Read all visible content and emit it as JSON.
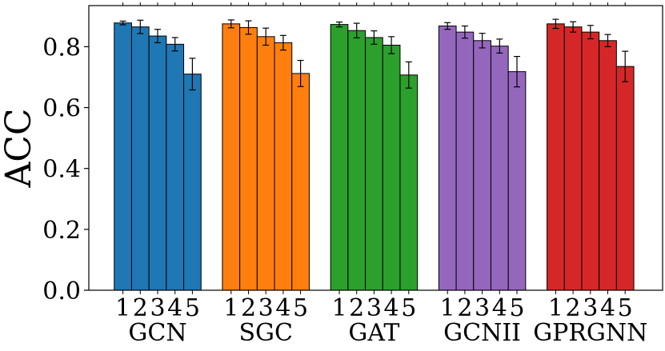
{
  "chart_data": {
    "type": "bar",
    "title": "",
    "xlabel": "",
    "ylabel": "ACC",
    "ylim": [
      0,
      0.935
    ],
    "yticks": [
      0.0,
      0.2,
      0.4,
      0.6,
      0.8
    ],
    "ytick_labels": [
      "0.0",
      "0.2",
      "0.4",
      "0.6",
      "0.8"
    ],
    "bar_labels": [
      "1",
      "2",
      "3",
      "4",
      "5"
    ],
    "groups": [
      {
        "name": "GCN",
        "color": "#1f77b4",
        "values": [
          0.878,
          0.865,
          0.835,
          0.808,
          0.71
        ],
        "errors": [
          0.006,
          0.022,
          0.022,
          0.022,
          0.052
        ]
      },
      {
        "name": "SGC",
        "color": "#ff7f0e",
        "values": [
          0.875,
          0.863,
          0.833,
          0.813,
          0.712
        ],
        "errors": [
          0.013,
          0.022,
          0.028,
          0.024,
          0.043
        ]
      },
      {
        "name": "GAT",
        "color": "#2ca02c",
        "values": [
          0.873,
          0.853,
          0.83,
          0.805,
          0.707
        ],
        "errors": [
          0.008,
          0.024,
          0.022,
          0.028,
          0.043
        ]
      },
      {
        "name": "GCNII",
        "color": "#9467bd",
        "values": [
          0.868,
          0.848,
          0.82,
          0.802,
          0.718
        ],
        "errors": [
          0.011,
          0.02,
          0.024,
          0.023,
          0.05
        ]
      },
      {
        "name": "GPRGNN",
        "color": "#d62728",
        "values": [
          0.875,
          0.865,
          0.848,
          0.82,
          0.735
        ],
        "errors": [
          0.015,
          0.017,
          0.022,
          0.02,
          0.05
        ]
      }
    ],
    "grid": false,
    "legend": "none"
  }
}
